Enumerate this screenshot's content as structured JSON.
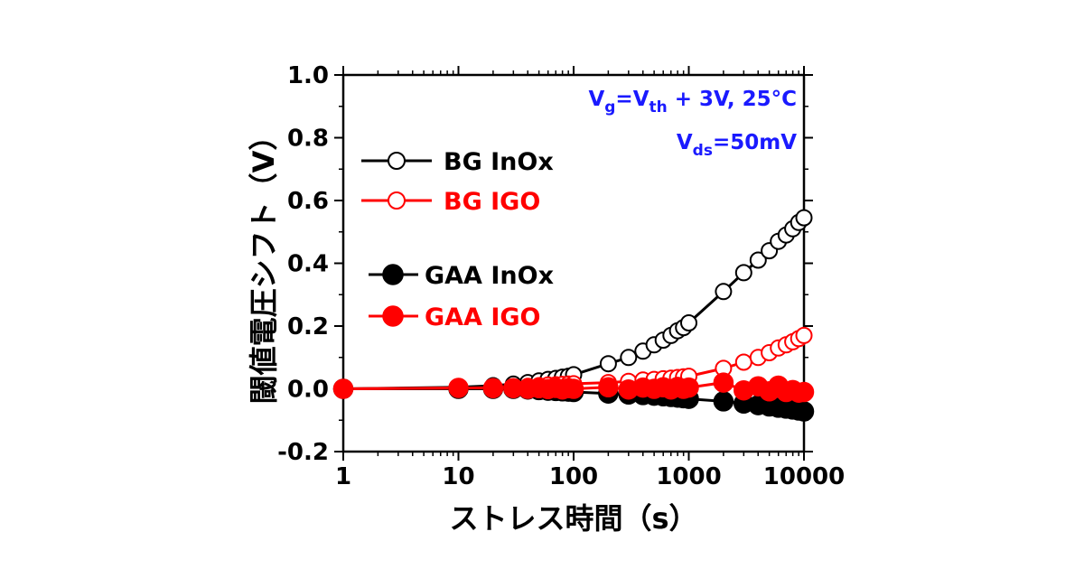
{
  "chart_data": {
    "type": "scatter",
    "title": "",
    "xlabel": "ストレス時間（s）",
    "ylabel": "閾値電圧シフト（V）",
    "xscale": "log",
    "xlim": [
      1,
      10000
    ],
    "ylim": [
      -0.2,
      1.0
    ],
    "x_ticks": [
      "1",
      "10",
      "100",
      "1000",
      "10000"
    ],
    "y_ticks": [
      "-0.2",
      "0.0",
      "0.2",
      "0.4",
      "0.6",
      "0.8",
      "1.0"
    ],
    "grid": false,
    "legend_position": "left",
    "annotation": {
      "line1": {
        "v": "V",
        "g": "g",
        "eq": "=V",
        "th": "th",
        "rest": " + 3V, 25°C"
      },
      "line2": {
        "v": "V",
        "ds": "ds",
        "rest": "=50mV"
      },
      "color": "#1a1aff"
    },
    "series": [
      {
        "name": "BG InOx",
        "color": "#000000",
        "marker": "open-circle",
        "x": [
          1,
          10,
          20,
          30,
          40,
          50,
          60,
          70,
          80,
          90,
          100,
          200,
          300,
          400,
          500,
          600,
          700,
          800,
          900,
          1000,
          2000,
          3000,
          4000,
          5000,
          6000,
          7000,
          8000,
          9000,
          10000
        ],
        "y": [
          0.0,
          0.005,
          0.01,
          0.015,
          0.02,
          0.025,
          0.03,
          0.033,
          0.037,
          0.04,
          0.045,
          0.08,
          0.1,
          0.12,
          0.14,
          0.155,
          0.17,
          0.185,
          0.195,
          0.21,
          0.31,
          0.37,
          0.41,
          0.44,
          0.47,
          0.49,
          0.51,
          0.53,
          0.545
        ]
      },
      {
        "name": "BG IGO",
        "color": "#ff0000",
        "marker": "open-circle",
        "x": [
          1,
          10,
          20,
          30,
          40,
          50,
          60,
          70,
          80,
          90,
          100,
          200,
          300,
          400,
          500,
          600,
          700,
          800,
          900,
          1000,
          2000,
          3000,
          4000,
          5000,
          6000,
          7000,
          8000,
          9000,
          10000
        ],
        "y": [
          0.0,
          0.002,
          0.004,
          0.006,
          0.008,
          0.01,
          0.012,
          0.013,
          0.014,
          0.015,
          0.016,
          0.02,
          0.024,
          0.028,
          0.03,
          0.032,
          0.034,
          0.036,
          0.038,
          0.04,
          0.065,
          0.085,
          0.1,
          0.115,
          0.13,
          0.14,
          0.15,
          0.16,
          0.17
        ]
      },
      {
        "name": "GAA InOx",
        "color": "#000000",
        "marker": "filled-circle",
        "x": [
          1,
          10,
          20,
          30,
          40,
          50,
          60,
          70,
          80,
          90,
          100,
          200,
          300,
          400,
          500,
          600,
          700,
          800,
          900,
          1000,
          2000,
          3000,
          4000,
          5000,
          6000,
          7000,
          8000,
          9000,
          10000
        ],
        "y": [
          0.0,
          0.0,
          0.0,
          0.0,
          -0.002,
          -0.004,
          -0.006,
          -0.007,
          -0.008,
          -0.009,
          -0.01,
          -0.015,
          -0.018,
          -0.02,
          -0.022,
          -0.024,
          -0.026,
          -0.028,
          -0.03,
          -0.032,
          -0.04,
          -0.047,
          -0.052,
          -0.056,
          -0.06,
          -0.063,
          -0.066,
          -0.069,
          -0.072
        ]
      },
      {
        "name": "GAA IGO",
        "color": "#ff0000",
        "marker": "filled-circle",
        "x": [
          1,
          10,
          20,
          30,
          40,
          50,
          60,
          70,
          80,
          90,
          100,
          200,
          300,
          400,
          500,
          600,
          700,
          800,
          900,
          1000,
          2000,
          3000,
          4000,
          5000,
          6000,
          7000,
          8000,
          9000,
          10000
        ],
        "y": [
          0.0,
          0.003,
          0.002,
          0.002,
          0.0,
          0.002,
          -0.001,
          0.003,
          -0.002,
          0.002,
          0.0,
          0.005,
          -0.002,
          0.004,
          0.0,
          0.005,
          -0.002,
          0.006,
          0.0,
          0.004,
          0.02,
          -0.005,
          0.008,
          -0.008,
          0.01,
          -0.01,
          -0.004,
          -0.012,
          -0.01
        ]
      }
    ]
  }
}
